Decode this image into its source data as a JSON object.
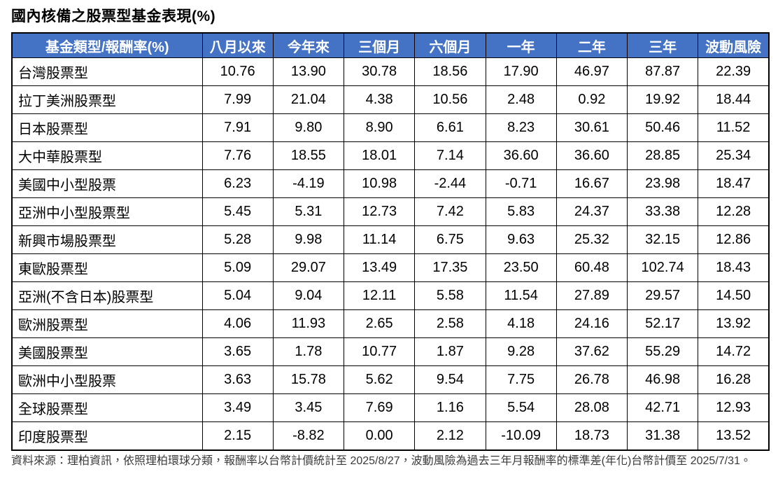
{
  "title": "國內核備之股票型基金表現(%)",
  "chart_data": {
    "type": "table",
    "title": "國內核備之股票型基金表現(%)",
    "columns": [
      "基金類型/報酬率(%)",
      "八月以來",
      "今年來",
      "三個月",
      "六個月",
      "一年",
      "二年",
      "三年",
      "波動風險"
    ],
    "rows": [
      {
        "category": "台灣股票型",
        "values": [
          "10.76",
          "13.90",
          "30.78",
          "18.56",
          "17.90",
          "46.97",
          "87.87",
          "22.39"
        ]
      },
      {
        "category": "拉丁美洲股票型",
        "values": [
          "7.99",
          "21.04",
          "4.38",
          "10.56",
          "2.48",
          "0.92",
          "19.92",
          "18.44"
        ]
      },
      {
        "category": "日本股票型",
        "values": [
          "7.91",
          "9.80",
          "8.90",
          "6.61",
          "8.23",
          "30.61",
          "50.46",
          "11.52"
        ]
      },
      {
        "category": "大中華股票型",
        "values": [
          "7.76",
          "18.55",
          "18.01",
          "7.14",
          "36.60",
          "36.60",
          "28.85",
          "25.34"
        ]
      },
      {
        "category": "美國中小型股票",
        "values": [
          "6.23",
          "-4.19",
          "10.98",
          "-2.44",
          "-0.71",
          "16.67",
          "23.98",
          "18.47"
        ]
      },
      {
        "category": "亞洲中小型股票型",
        "values": [
          "5.45",
          "5.31",
          "12.73",
          "7.42",
          "5.83",
          "24.37",
          "33.38",
          "12.28"
        ]
      },
      {
        "category": "新興市場股票型",
        "values": [
          "5.28",
          "9.98",
          "11.14",
          "6.75",
          "9.63",
          "25.32",
          "32.15",
          "12.86"
        ]
      },
      {
        "category": "東歐股票型",
        "values": [
          "5.09",
          "29.07",
          "13.49",
          "17.35",
          "23.50",
          "60.48",
          "102.74",
          "18.43"
        ]
      },
      {
        "category": "亞洲(不含日本)股票型",
        "values": [
          "5.04",
          "9.04",
          "12.11",
          "5.58",
          "11.54",
          "27.89",
          "29.57",
          "14.50"
        ]
      },
      {
        "category": "歐洲股票型",
        "values": [
          "4.06",
          "11.93",
          "2.65",
          "2.58",
          "4.18",
          "24.16",
          "52.17",
          "13.92"
        ]
      },
      {
        "category": "美國股票型",
        "values": [
          "3.65",
          "1.78",
          "10.77",
          "1.87",
          "9.28",
          "37.62",
          "55.29",
          "14.72"
        ]
      },
      {
        "category": "歐洲中小型股票",
        "values": [
          "3.63",
          "15.78",
          "5.62",
          "9.54",
          "7.75",
          "26.78",
          "46.98",
          "16.28"
        ]
      },
      {
        "category": "全球股票型",
        "values": [
          "3.49",
          "3.45",
          "7.69",
          "1.16",
          "5.54",
          "28.08",
          "42.71",
          "12.93"
        ]
      },
      {
        "category": "印度股票型",
        "values": [
          "2.15",
          "-8.82",
          "0.00",
          "2.12",
          "-10.09",
          "18.73",
          "31.38",
          "13.52"
        ]
      }
    ],
    "layout_hints": {
      "header_position": "top",
      "grid": true,
      "first_column_align": "left",
      "value_align": "center"
    }
  },
  "footer": {
    "source_note": "資料來源：理柏資訊，依照理柏環球分類，報酬率以台幣計價統計至 2025/8/27，波動風險為過去三年月報酬率的標準差(年化)台幣計價至 2025/7/31。"
  },
  "colors": {
    "header_bg": "#4472C4",
    "header_text": "#FFFFFF",
    "border": "#000000",
    "note_text": "#3A3A3A"
  }
}
